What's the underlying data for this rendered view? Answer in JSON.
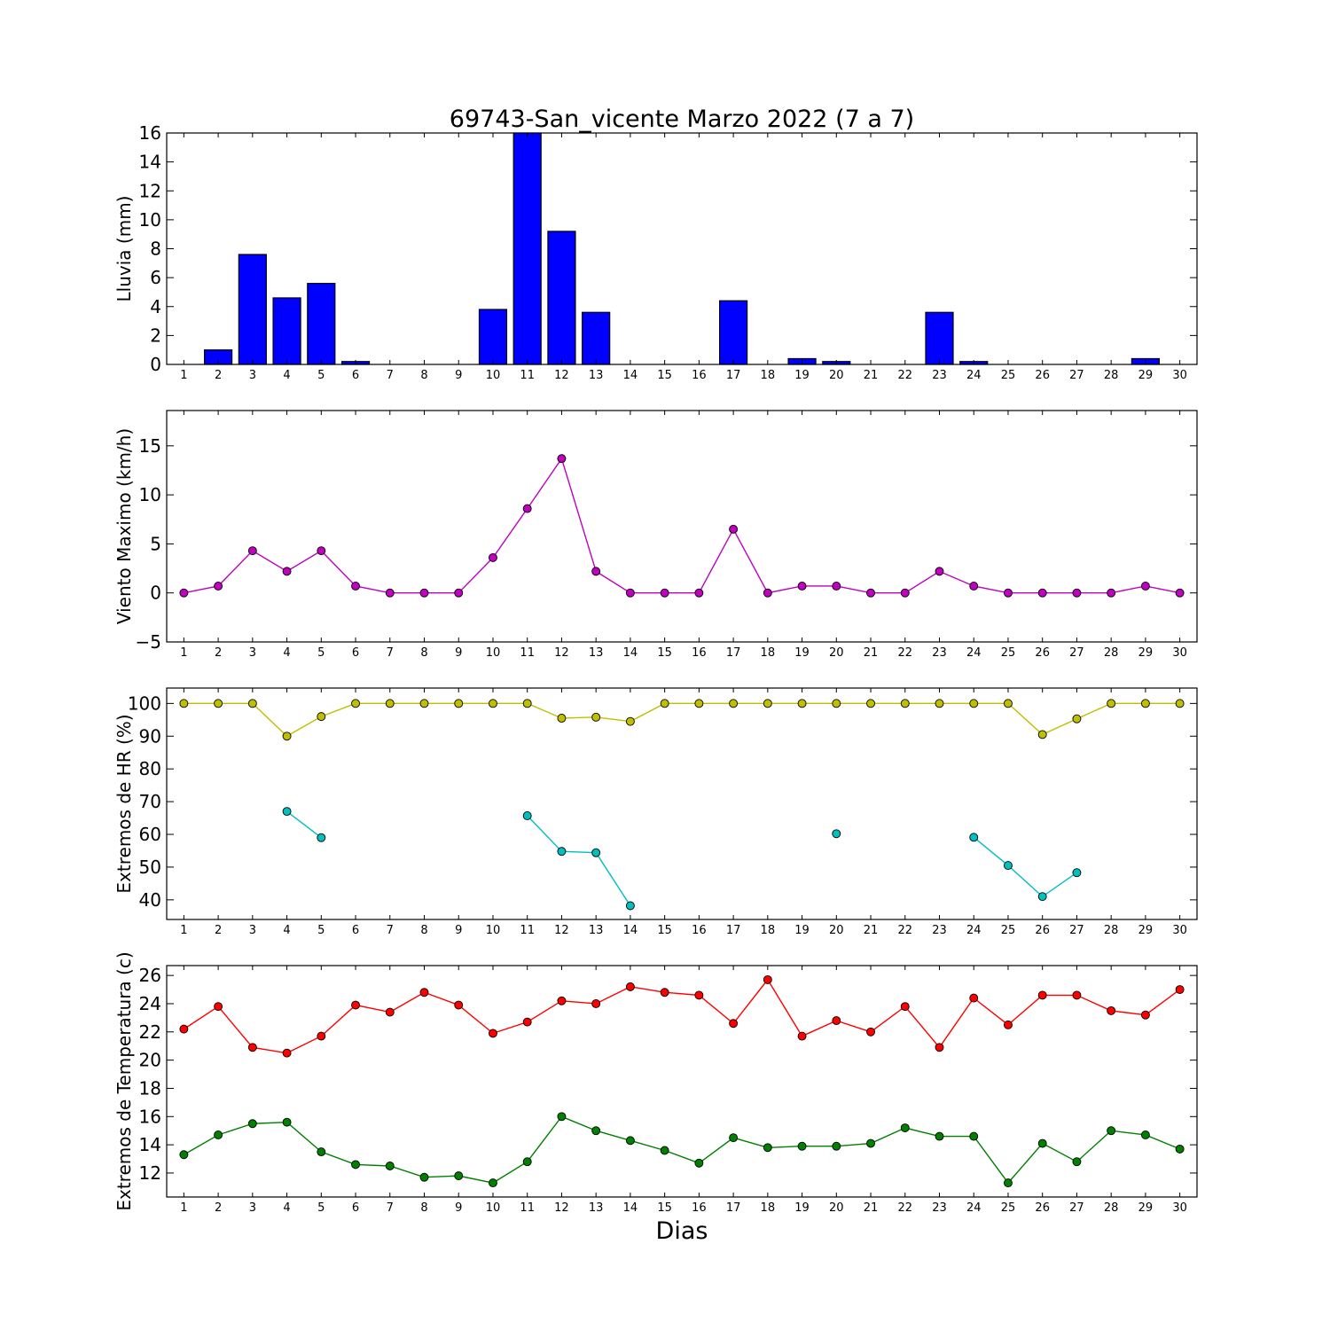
{
  "figure_title": "69743-San_vicente Marzo 2022  (7 a 7)",
  "x_label": "Dias",
  "colors": {
    "rain": "#0000ff",
    "wind": "#bf00bf",
    "hr_max": "#bfbf00",
    "hr_min": "#00bfbf",
    "temp_max": "#ff0000",
    "temp_min": "#008000"
  },
  "chart_data": [
    {
      "type": "bar",
      "ylabel": "Lluvia (mm)",
      "x": [
        1,
        2,
        3,
        4,
        5,
        6,
        7,
        8,
        9,
        10,
        11,
        12,
        13,
        14,
        15,
        16,
        17,
        18,
        19,
        20,
        21,
        22,
        23,
        24,
        25,
        26,
        27,
        28,
        29,
        30
      ],
      "values": [
        0,
        1.0,
        7.6,
        4.6,
        5.6,
        0.2,
        0,
        0,
        0,
        3.8,
        16.0,
        9.2,
        3.6,
        0,
        0,
        0,
        4.4,
        0,
        0.4,
        0.2,
        0,
        0,
        3.6,
        0.2,
        0,
        0,
        0,
        0,
        0.4,
        0
      ],
      "ylim": [
        0,
        16
      ],
      "yticks": [
        0,
        2,
        4,
        6,
        8,
        10,
        12,
        14,
        16
      ]
    },
    {
      "type": "line",
      "ylabel": "Viento Maximo (km/h)",
      "x": [
        1,
        2,
        3,
        4,
        5,
        6,
        7,
        8,
        9,
        10,
        11,
        12,
        13,
        14,
        15,
        16,
        17,
        18,
        19,
        20,
        21,
        22,
        23,
        24,
        25,
        26,
        27,
        28,
        29,
        30
      ],
      "values": [
        0,
        0.7,
        4.3,
        2.2,
        4.3,
        0.7,
        0,
        0,
        0,
        3.6,
        8.6,
        13.7,
        2.2,
        0,
        0,
        0,
        6.5,
        0,
        0.7,
        0.7,
        0,
        0,
        2.2,
        0.7,
        0,
        0,
        0,
        0,
        0.7,
        0
      ],
      "ylim": [
        -5,
        18.6
      ],
      "yticks": [
        -5,
        0,
        5,
        10,
        15
      ]
    },
    {
      "type": "line",
      "ylabel": "Extremos de HR (%)",
      "x": [
        1,
        2,
        3,
        4,
        5,
        6,
        7,
        8,
        9,
        10,
        11,
        12,
        13,
        14,
        15,
        16,
        17,
        18,
        19,
        20,
        21,
        22,
        23,
        24,
        25,
        26,
        27,
        28,
        29,
        30
      ],
      "series": [
        {
          "values": [
            100,
            100,
            100,
            90,
            96,
            100,
            100,
            100,
            100,
            100,
            100,
            95.5,
            95.8,
            94.5,
            100,
            100,
            100,
            100,
            100,
            100,
            100,
            100,
            100,
            100,
            100,
            90.5,
            95.3,
            100,
            100,
            100
          ]
        },
        {
          "values": [
            null,
            null,
            null,
            67,
            59,
            null,
            null,
            null,
            null,
            null,
            65.7,
            54.8,
            54.4,
            38.2,
            null,
            null,
            null,
            null,
            null,
            60.2,
            null,
            null,
            null,
            59.1,
            50.5,
            41,
            48.3,
            null,
            null,
            null
          ]
        }
      ],
      "ylim": [
        34,
        104.7
      ],
      "yticks": [
        40,
        50,
        60,
        70,
        80,
        90,
        100
      ]
    },
    {
      "type": "line",
      "ylabel": "Extremos de Temperatura (c)",
      "x": [
        1,
        2,
        3,
        4,
        5,
        6,
        7,
        8,
        9,
        10,
        11,
        12,
        13,
        14,
        15,
        16,
        17,
        18,
        19,
        20,
        21,
        22,
        23,
        24,
        25,
        26,
        27,
        28,
        29,
        30
      ],
      "series": [
        {
          "values": [
            22.2,
            23.8,
            20.9,
            20.5,
            21.7,
            23.9,
            23.4,
            24.8,
            23.9,
            21.9,
            22.7,
            24.2,
            24.0,
            25.2,
            24.8,
            24.6,
            22.6,
            25.7,
            21.7,
            22.8,
            22.0,
            23.8,
            20.9,
            24.4,
            22.5,
            24.6,
            24.6,
            23.5,
            23.2,
            25.0
          ]
        },
        {
          "values": [
            13.3,
            14.7,
            15.5,
            15.6,
            13.5,
            12.6,
            12.5,
            11.7,
            11.8,
            11.3,
            12.8,
            16.0,
            15.0,
            14.3,
            13.6,
            12.7,
            14.5,
            13.8,
            13.9,
            13.9,
            14.1,
            15.2,
            14.6,
            14.6,
            11.3,
            14.1,
            12.8,
            15.0,
            14.7,
            13.7
          ]
        }
      ],
      "ylim": [
        10.3,
        26.7
      ],
      "yticks": [
        12,
        14,
        16,
        18,
        20,
        22,
        24,
        26
      ]
    }
  ]
}
